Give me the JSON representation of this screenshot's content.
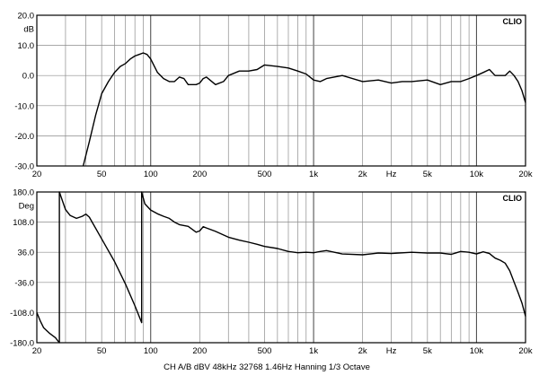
{
  "chart_data": [
    {
      "type": "line",
      "brand": "CLIO",
      "ylabel": "dB",
      "x_scale": "log",
      "xlim": [
        20,
        20000
      ],
      "ylim": [
        -30,
        20
      ],
      "grid": true,
      "y_ticks": [
        {
          "value": 20,
          "label": "20.0"
        },
        {
          "value": 10,
          "label": "10.0"
        },
        {
          "value": 0,
          "label": "0.0"
        },
        {
          "value": -10,
          "label": "-10.0"
        },
        {
          "value": -20,
          "label": "-20.0"
        },
        {
          "value": -30,
          "label": "-30.0"
        }
      ],
      "x_ticks": [
        {
          "value": 20,
          "label": "20"
        },
        {
          "value": 50,
          "label": "50"
        },
        {
          "value": 100,
          "label": "100"
        },
        {
          "value": 200,
          "label": "200"
        },
        {
          "value": 500,
          "label": "500"
        },
        {
          "value": 1000,
          "label": "1k"
        },
        {
          "value": 2000,
          "label": "2k"
        },
        {
          "value": 3000,
          "label": "Hz"
        },
        {
          "value": 5000,
          "label": "5k"
        },
        {
          "value": 10000,
          "label": "10k"
        },
        {
          "value": 20000,
          "label": "20k"
        }
      ],
      "series": [
        {
          "color": "#000000",
          "x": [
            38.5,
            42,
            46,
            50,
            55,
            60,
            65,
            70,
            75,
            80,
            85,
            90,
            95,
            100,
            110,
            120,
            130,
            140,
            150,
            160,
            170,
            180,
            190,
            200,
            210,
            220,
            250,
            280,
            300,
            350,
            400,
            450,
            500,
            600,
            700,
            800,
            900,
            1000,
            1100,
            1200,
            1500,
            2000,
            2500,
            3000,
            3500,
            4000,
            5000,
            6000,
            7000,
            8000,
            9000,
            10000,
            11000,
            12000,
            13000,
            14000,
            15000,
            16000,
            17000,
            18000,
            19000,
            20000
          ],
          "y": [
            -30,
            -22,
            -13,
            -6,
            -2,
            1,
            3,
            4,
            5.5,
            6.5,
            7,
            7.5,
            7,
            5.5,
            1,
            -1,
            -2,
            -2,
            -0.5,
            -1,
            -3,
            -3,
            -3,
            -2.5,
            -1,
            -0.5,
            -3,
            -2,
            0,
            1.5,
            1.5,
            2,
            3.5,
            3,
            2.5,
            1.5,
            0.5,
            -1.5,
            -2,
            -1,
            0,
            -2,
            -1.5,
            -2.5,
            -2,
            -2,
            -1.5,
            -3,
            -2,
            -2,
            -1,
            0,
            1,
            2,
            0,
            0,
            0,
            1.5,
            0,
            -2,
            -5,
            -9
          ]
        }
      ]
    },
    {
      "type": "line",
      "brand": "CLIO",
      "ylabel": "Deg",
      "x_scale": "log",
      "xlim": [
        20,
        20000
      ],
      "ylim": [
        -180,
        180
      ],
      "grid": true,
      "y_ticks": [
        {
          "value": 180,
          "label": "180.0"
        },
        {
          "value": 108,
          "label": "108.0"
        },
        {
          "value": 36,
          "label": "36.0"
        },
        {
          "value": -36,
          "label": "-36.0"
        },
        {
          "value": -108,
          "label": "-108.0"
        },
        {
          "value": -180,
          "label": "-180.0"
        }
      ],
      "x_ticks": [
        {
          "value": 20,
          "label": "20"
        },
        {
          "value": 50,
          "label": "50"
        },
        {
          "value": 100,
          "label": "100"
        },
        {
          "value": 200,
          "label": "200"
        },
        {
          "value": 500,
          "label": "500"
        },
        {
          "value": 1000,
          "label": "1k"
        },
        {
          "value": 2000,
          "label": "2k"
        },
        {
          "value": 3000,
          "label": "Hz"
        },
        {
          "value": 5000,
          "label": "5k"
        },
        {
          "value": 10000,
          "label": "10k"
        },
        {
          "value": 20000,
          "label": "20k"
        }
      ],
      "series": [
        {
          "color": "#000000",
          "x": [
            20,
            21,
            22,
            24,
            26,
            27.5,
            27.5,
            30,
            32,
            35,
            38,
            40,
            42,
            50,
            60,
            70,
            80,
            88,
            88,
            92,
            100,
            110,
            120,
            130,
            140,
            150,
            170,
            190,
            200,
            210,
            220,
            250,
            300,
            350,
            400,
            450,
            500,
            600,
            700,
            800,
            900,
            1000,
            1100,
            1200,
            1500,
            2000,
            2500,
            3000,
            4000,
            5000,
            6000,
            7000,
            8000,
            9000,
            10000,
            11000,
            12000,
            13000,
            14000,
            15000,
            16000,
            17000,
            18000,
            19000,
            20000
          ],
          "y": [
            -108,
            -128,
            -144,
            -158,
            -168,
            -180,
            180,
            138,
            124,
            117,
            122,
            127,
            120,
            68,
            14,
            -40,
            -92,
            -132,
            180,
            152,
            137,
            128,
            122,
            117,
            108,
            102,
            98,
            84,
            87,
            97,
            94,
            86,
            72,
            65,
            60,
            55,
            50,
            45,
            38,
            35,
            36,
            35,
            38,
            40,
            32,
            30,
            34,
            33,
            36,
            34,
            34,
            31,
            38,
            36,
            32,
            37,
            33,
            22,
            17,
            10,
            -8,
            -35,
            -60,
            -85,
            -117
          ]
        }
      ]
    }
  ],
  "footer": {
    "label": "CH A/B  dBV  48kHz  32768  1.46Hz  Hanning  1/3 Octave"
  }
}
